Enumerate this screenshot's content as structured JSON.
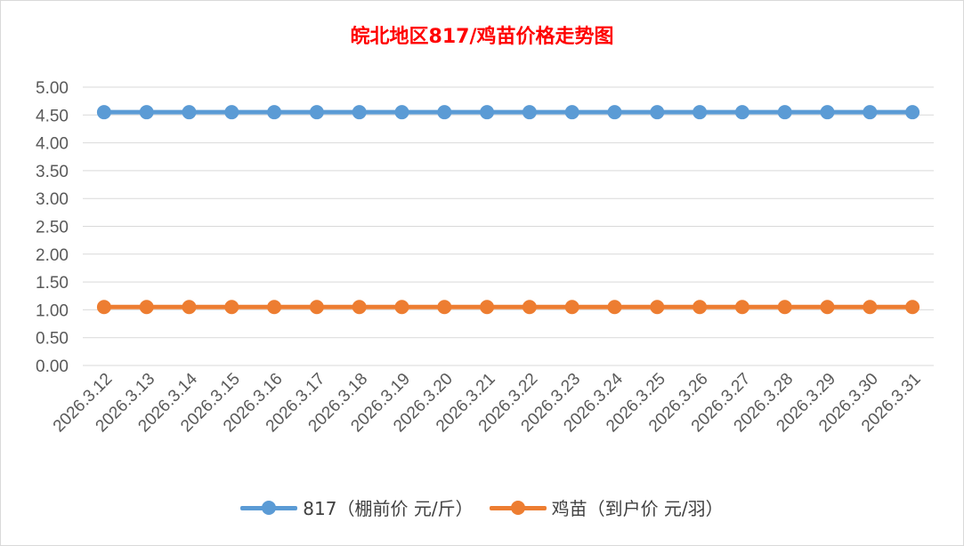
{
  "chart_data": {
    "type": "line",
    "title": "皖北地区817/鸡苗价格走势图",
    "categories": [
      "2026.3.12",
      "2026.3.13",
      "2026.3.14",
      "2026.3.15",
      "2026.3.16",
      "2026.3.17",
      "2026.3.18",
      "2026.3.19",
      "2026.3.20",
      "2026.3.21",
      "2026.3.22",
      "2026.3.23",
      "2026.3.24",
      "2026.3.25",
      "2026.3.26",
      "2026.3.27",
      "2026.3.28",
      "2026.3.29",
      "2026.3.30",
      "2026.3.31"
    ],
    "series": [
      {
        "name": "817（棚前价 元/斤）",
        "color": "#5b9bd5",
        "values": [
          4.55,
          4.55,
          4.55,
          4.55,
          4.55,
          4.55,
          4.55,
          4.55,
          4.55,
          4.55,
          4.55,
          4.55,
          4.55,
          4.55,
          4.55,
          4.55,
          4.55,
          4.55,
          4.55,
          4.55
        ]
      },
      {
        "name": "鸡苗（到户价 元/羽）",
        "color": "#ed7d31",
        "values": [
          1.05,
          1.05,
          1.05,
          1.05,
          1.05,
          1.05,
          1.05,
          1.05,
          1.05,
          1.05,
          1.05,
          1.05,
          1.05,
          1.05,
          1.05,
          1.05,
          1.05,
          1.05,
          1.05,
          1.05
        ]
      }
    ],
    "yticks": [
      "0.00",
      "0.50",
      "1.00",
      "1.50",
      "2.00",
      "2.50",
      "3.00",
      "3.50",
      "4.00",
      "4.50",
      "5.00"
    ],
    "ylim": [
      0,
      5
    ],
    "grid": true,
    "legend_position": "bottom",
    "title_color": "#ff0000",
    "xlabel": "",
    "ylabel": ""
  }
}
